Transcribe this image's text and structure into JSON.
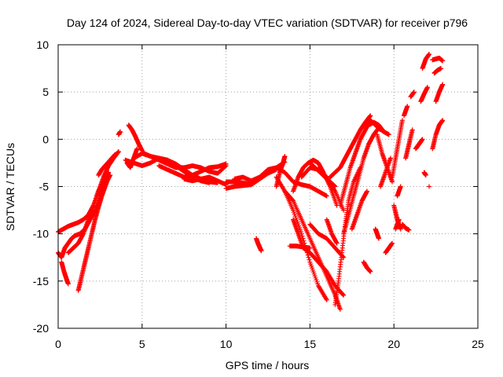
{
  "chart_data": {
    "type": "scatter",
    "title": "Day 124 of 2024, Sidereal Day-to-day VTEC variation (SDTVAR) for receiver p796",
    "xlabel": "GPS time / hours",
    "ylabel": "SDTVAR / TECUs",
    "xlim": [
      0,
      25
    ],
    "ylim": [
      -20,
      10
    ],
    "xticks": [
      "0",
      "5",
      "10",
      "15",
      "20",
      "25"
    ],
    "yticks": [
      "10",
      "5",
      "0",
      "-5",
      "-10",
      "-15",
      "-20"
    ],
    "grid": true,
    "marker": "+",
    "color": "#ff0000",
    "series": [
      {
        "x": [
          0.0,
          0.3,
          0.6,
          0.9,
          1.2,
          1.5,
          1.8,
          2.1,
          2.4,
          2.7,
          3.0,
          3.3,
          3.6
        ],
        "y": [
          -9.8,
          -9.5,
          -9.2,
          -9.0,
          -8.8,
          -8.5,
          -8.0,
          -7.0,
          -5.5,
          -4.0,
          -2.8,
          -2.0,
          -1.3
        ]
      },
      {
        "x": [
          0.0,
          0.2,
          0.4,
          0.6,
          0.8,
          1.0,
          1.3,
          1.6,
          1.9,
          2.2,
          2.5,
          2.8,
          3.1
        ],
        "y": [
          -12.0,
          -12.5,
          -11.5,
          -11.0,
          -10.5,
          -10.2,
          -10.0,
          -9.5,
          -8.5,
          -7.5,
          -6.0,
          -4.8,
          -3.8
        ]
      },
      {
        "x": [
          0.2,
          0.35,
          0.5,
          0.6
        ],
        "y": [
          -13.0,
          -14.0,
          -14.8,
          -15.3
        ]
      },
      {
        "x": [
          1.2,
          1.4,
          1.6,
          1.8,
          2.0,
          2.2,
          2.4,
          2.6,
          2.8,
          3.0
        ],
        "y": [
          -16.0,
          -14.5,
          -13.0,
          -11.5,
          -10.0,
          -8.5,
          -7.2,
          -6.0,
          -5.0,
          -4.0
        ]
      },
      {
        "x": [
          0.6,
          0.9,
          1.2,
          1.5,
          1.8,
          2.1,
          2.4,
          2.7,
          3.0
        ],
        "y": [
          -12.0,
          -11.5,
          -11.0,
          -10.0,
          -8.5,
          -7.0,
          -5.5,
          -4.5,
          -3.5
        ]
      },
      {
        "x": [
          2.4,
          2.6,
          2.8,
          3.0,
          3.2,
          3.4
        ],
        "y": [
          -3.8,
          -3.2,
          -2.8,
          -2.4,
          -2.0,
          -1.6
        ]
      },
      {
        "x": [
          3.6,
          3.7
        ],
        "y": [
          0.5,
          0.8
        ]
      },
      {
        "x": [
          4.1,
          4.3,
          4.5,
          4.7
        ],
        "y": [
          -2.5,
          -3.0,
          -2.0,
          -1.0
        ]
      },
      {
        "x": [
          4.2,
          4.4,
          4.6,
          4.8,
          5.0
        ],
        "y": [
          1.5,
          1.0,
          0.3,
          -0.5,
          -1.2
        ]
      },
      {
        "x": [
          4.0,
          4.5,
          5.0,
          5.5,
          6.0,
          6.5,
          7.0,
          7.5,
          8.0,
          8.5,
          9.0
        ],
        "y": [
          -2.2,
          -2.5,
          -2.8,
          -2.5,
          -2.0,
          -2.2,
          -2.8,
          -3.4,
          -4.0,
          -4.4,
          -4.6
        ]
      },
      {
        "x": [
          4.5,
          5.0,
          5.5,
          6.0,
          6.5,
          7.0,
          7.5,
          8.0,
          8.5,
          9.0,
          9.5
        ],
        "y": [
          -2.0,
          -1.5,
          -1.8,
          -2.0,
          -2.2,
          -2.6,
          -3.2,
          -3.8,
          -4.2,
          -4.5,
          -4.6
        ]
      },
      {
        "x": [
          5.0,
          5.5,
          6.0,
          6.5,
          7.0,
          7.5,
          8.0,
          8.5,
          9.0,
          9.5,
          10.0
        ],
        "y": [
          -1.4,
          -1.8,
          -2.2,
          -2.6,
          -3.0,
          -3.0,
          -2.8,
          -3.0,
          -3.4,
          -3.6,
          -2.8
        ]
      },
      {
        "x": [
          6.0,
          6.5,
          7.0,
          7.5,
          8.0,
          8.5,
          9.0,
          9.5,
          10.0
        ],
        "y": [
          -2.8,
          -3.2,
          -3.6,
          -4.0,
          -3.8,
          -3.4,
          -3.0,
          -2.9,
          -2.6
        ]
      },
      {
        "x": [
          7.5,
          8.0,
          8.5,
          9.0,
          9.5,
          10.0
        ],
        "y": [
          -4.2,
          -4.4,
          -4.2,
          -4.0,
          -4.4,
          -4.8
        ]
      },
      {
        "x": [
          10.0,
          10.5,
          11.0,
          11.5,
          12.0,
          12.5,
          13.0,
          13.5
        ],
        "y": [
          -4.5,
          -4.5,
          -4.6,
          -4.8,
          -4.2,
          -3.5,
          -3.0,
          -2.4
        ]
      },
      {
        "x": [
          10.0,
          10.5,
          11.0,
          11.5,
          12.0,
          12.5,
          13.0
        ],
        "y": [
          -5.2,
          -5.0,
          -4.9,
          -4.8,
          -4.2,
          -3.6,
          -3.2
        ]
      },
      {
        "x": [
          10.5,
          11.0,
          11.5,
          12.0,
          12.5,
          13.0,
          13.5,
          14.0,
          14.5,
          15.0,
          15.5,
          16.0
        ],
        "y": [
          -4.2,
          -4.0,
          -4.4,
          -4.0,
          -3.2,
          -3.0,
          -3.5,
          -4.5,
          -4.8,
          -5.0,
          -5.5,
          -6.0
        ]
      },
      {
        "x": [
          11.8,
          11.9,
          12.0,
          12.1
        ],
        "y": [
          -10.5,
          -11.0,
          -11.4,
          -11.8
        ]
      },
      {
        "x": [
          13.0,
          13.2,
          13.4,
          13.5
        ],
        "y": [
          -5.0,
          -3.5,
          -2.5,
          -1.8
        ]
      },
      {
        "x": [
          13.0,
          13.5,
          14.0,
          14.5,
          15.0,
          15.5,
          16.0
        ],
        "y": [
          -4.0,
          -5.5,
          -7.5,
          -10.0,
          -13.0,
          -15.5,
          -17.0
        ]
      },
      {
        "x": [
          13.5,
          14.0,
          14.5,
          15.0,
          15.5,
          16.0,
          16.5,
          16.8
        ],
        "y": [
          -5.5,
          -6.5,
          -8.5,
          -10.5,
          -12.5,
          -14.5,
          -16.5,
          -18.0
        ]
      },
      {
        "x": [
          14.0,
          14.3,
          14.6,
          15.0,
          15.5,
          16.0,
          16.5,
          17.0
        ],
        "y": [
          -8.5,
          -10.0,
          -11.5,
          -12.0,
          -13.0,
          -14.0,
          -15.5,
          -16.5
        ]
      },
      {
        "x": [
          13.8,
          14.2,
          14.6,
          15.0
        ],
        "y": [
          -11.3,
          -11.3,
          -11.4,
          -11.5
        ]
      },
      {
        "x": [
          14.0,
          14.3,
          14.6,
          14.9,
          15.2,
          15.5,
          15.8,
          16.2,
          16.6
        ],
        "y": [
          -5.5,
          -4.0,
          -3.0,
          -2.5,
          -2.2,
          -2.5,
          -3.5,
          -5.0,
          -7.0
        ]
      },
      {
        "x": [
          14.5,
          15.0,
          15.5,
          16.0,
          16.5,
          17.0
        ],
        "y": [
          -4.0,
          -3.0,
          -3.2,
          -4.0,
          -5.5,
          -7.5
        ]
      },
      {
        "x": [
          15.0,
          15.5,
          16.0,
          16.5,
          17.0
        ],
        "y": [
          -9.0,
          -10.0,
          -10.5,
          -11.5,
          -12.5
        ]
      },
      {
        "x": [
          15.0,
          15.3,
          15.6,
          15.9,
          16.2,
          16.5
        ],
        "y": [
          -2.5,
          -3.0,
          -3.5,
          -4.0,
          -4.5,
          -5.0
        ]
      },
      {
        "x": [
          16.5,
          16.7,
          16.9,
          17.1,
          17.3,
          17.6,
          18.0
        ],
        "y": [
          -17.5,
          -15.0,
          -12.0,
          -9.0,
          -6.5,
          -4.5,
          -3.0
        ]
      },
      {
        "x": [
          16.2,
          16.5,
          16.8,
          17.1,
          17.4,
          17.7,
          18.0,
          18.3,
          18.6
        ],
        "y": [
          -4.0,
          -3.5,
          -3.0,
          -2.0,
          -1.0,
          0.0,
          1.0,
          1.8,
          2.5
        ]
      },
      {
        "x": [
          16.8,
          17.1,
          17.4,
          17.7,
          18.0,
          18.3,
          18.6,
          18.9,
          19.2
        ],
        "y": [
          -7.0,
          -5.0,
          -3.0,
          -1.5,
          0.0,
          1.0,
          2.0,
          1.5,
          1.0
        ]
      },
      {
        "x": [
          17.0,
          17.3,
          17.6,
          17.9,
          18.2,
          18.5,
          18.8,
          19.1,
          19.4
        ],
        "y": [
          -10.0,
          -8.0,
          -6.0,
          -4.0,
          -2.0,
          -0.5,
          0.5,
          1.2,
          0.8
        ]
      },
      {
        "x": [
          17.5,
          17.8,
          18.1,
          18.4
        ],
        "y": [
          -9.5,
          -8.0,
          -6.5,
          -5.5
        ]
      },
      {
        "x": [
          16.0,
          16.3,
          16.6
        ],
        "y": [
          -8.5,
          -10.0,
          -11.0
        ]
      },
      {
        "x": [
          18.2,
          18.4,
          18.6
        ],
        "y": [
          -13.0,
          -13.6,
          -14.0
        ]
      },
      {
        "x": [
          18.9,
          19.0,
          19.1
        ],
        "y": [
          -9.5,
          -10.0,
          -10.5
        ]
      },
      {
        "x": [
          19.5,
          19.7,
          19.9
        ],
        "y": [
          -12.0,
          -11.5,
          -11.0
        ]
      },
      {
        "x": [
          18.5,
          18.8,
          19.1,
          19.4,
          19.7
        ],
        "y": [
          1.5,
          1.8,
          1.5,
          0.8,
          0.5
        ]
      },
      {
        "x": [
          19.0,
          19.3,
          19.6,
          19.9
        ],
        "y": [
          0.5,
          -1.5,
          -3.0,
          -4.5
        ]
      },
      {
        "x": [
          19.2,
          19.5,
          19.8
        ],
        "y": [
          -5.0,
          -3.5,
          -2.0
        ]
      },
      {
        "x": [
          19.9,
          20.1,
          20.3,
          20.5
        ],
        "y": [
          -4.0,
          -2.0,
          0.0,
          2.0
        ]
      },
      {
        "x": [
          20.0,
          20.2,
          20.4
        ],
        "y": [
          -7.0,
          -8.5,
          -9.5
        ]
      },
      {
        "x": [
          20.2,
          20.4
        ],
        "y": [
          -6.0,
          -5.0
        ]
      },
      {
        "x": [
          20.1,
          20.3
        ],
        "y": [
          -9.5,
          -8.5
        ]
      },
      {
        "x": [
          20.5,
          20.7,
          20.9
        ],
        "y": [
          -9.0,
          -9.4,
          -9.6
        ]
      },
      {
        "x": [
          20.6,
          20.8
        ],
        "y": [
          2.5,
          3.5
        ]
      },
      {
        "x": [
          20.7,
          20.9,
          21.1
        ],
        "y": [
          -2.0,
          -0.5,
          1.0
        ]
      },
      {
        "x": [
          21.0,
          21.2
        ],
        "y": [
          4.5,
          5.0
        ]
      },
      {
        "x": [
          21.3,
          21.5,
          21.7
        ],
        "y": [
          -1.0,
          -0.5,
          0.0
        ]
      },
      {
        "x": [
          21.6,
          21.8,
          22.0
        ],
        "y": [
          4.0,
          4.8,
          5.5
        ]
      },
      {
        "x": [
          21.7,
          21.9,
          22.1
        ],
        "y": [
          7.5,
          8.5,
          9.0
        ]
      },
      {
        "x": [
          21.8,
          21.9
        ],
        "y": [
          -3.5,
          -3.8
        ]
      },
      {
        "x": [
          22.1
        ],
        "y": [
          -5.0
        ]
      },
      {
        "x": [
          22.3,
          22.5,
          22.7,
          22.9
        ],
        "y": [
          8.4,
          8.5,
          8.6,
          8.3
        ]
      },
      {
        "x": [
          22.4,
          22.6,
          22.8
        ],
        "y": [
          7.0,
          7.3,
          7.5
        ]
      },
      {
        "x": [
          22.5,
          22.7,
          22.9
        ],
        "y": [
          4.0,
          5.0,
          5.8
        ]
      },
      {
        "x": [
          22.3,
          22.5,
          22.7,
          22.9
        ],
        "y": [
          -1.0,
          0.5,
          1.5,
          2.0
        ]
      }
    ]
  }
}
